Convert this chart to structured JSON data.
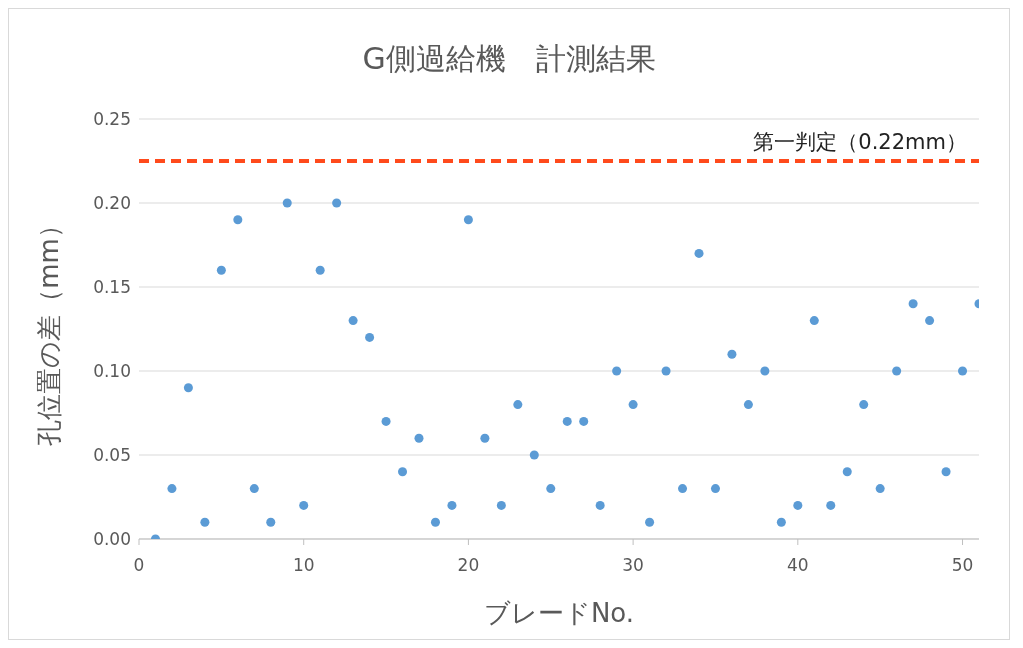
{
  "chart_data": {
    "type": "scatter",
    "title": "G側過給機　計測結果",
    "xlabel": "ブレードNo.",
    "ylabel": "孔位置の差（mm）",
    "x": [
      1,
      2,
      3,
      4,
      5,
      6,
      7,
      8,
      9,
      10,
      11,
      12,
      13,
      14,
      15,
      16,
      17,
      18,
      19,
      20,
      21,
      22,
      23,
      24,
      25,
      26,
      27,
      28,
      29,
      30,
      31,
      32,
      33,
      34,
      35,
      36,
      37,
      38,
      39,
      40,
      41,
      42,
      43,
      44,
      45,
      46,
      47,
      48,
      49,
      50,
      51
    ],
    "series": [
      {
        "color": "#5b9bd5",
        "values": [
          0.0,
          0.03,
          0.09,
          0.01,
          0.16,
          0.19,
          0.03,
          0.01,
          0.2,
          0.02,
          0.16,
          0.2,
          0.13,
          0.12,
          0.07,
          0.04,
          0.06,
          0.01,
          0.02,
          0.19,
          0.06,
          0.02,
          0.08,
          0.05,
          0.03,
          0.07,
          0.07,
          0.02,
          0.1,
          0.08,
          0.01,
          0.1,
          0.03,
          0.17,
          0.03,
          0.11,
          0.08,
          0.1,
          0.01,
          0.02,
          0.13,
          0.02,
          0.04,
          0.08,
          0.03,
          0.1,
          0.14,
          0.13,
          0.04,
          0.1,
          0.14
        ]
      }
    ],
    "xlim": [
      0,
      51
    ],
    "xticks": [
      0,
      10,
      20,
      30,
      40,
      50
    ],
    "ylim": [
      0,
      0.25
    ],
    "yticks": [
      {
        "value": 0,
        "label": "0.00"
      },
      {
        "value": 0.05,
        "label": "0.05"
      },
      {
        "value": 0.1,
        "label": "0.10"
      },
      {
        "value": 0.15,
        "label": "0.15"
      },
      {
        "value": 0.2,
        "label": "0.20"
      },
      {
        "value": 0.25,
        "label": "0.25"
      }
    ],
    "ref_lines": [
      {
        "axis": "y",
        "value": 0.225,
        "label": "第一判定（0.22mm）",
        "color": "#ff4a1c",
        "line_style": "dashed"
      }
    ],
    "grid": "y",
    "marker": "circle"
  }
}
